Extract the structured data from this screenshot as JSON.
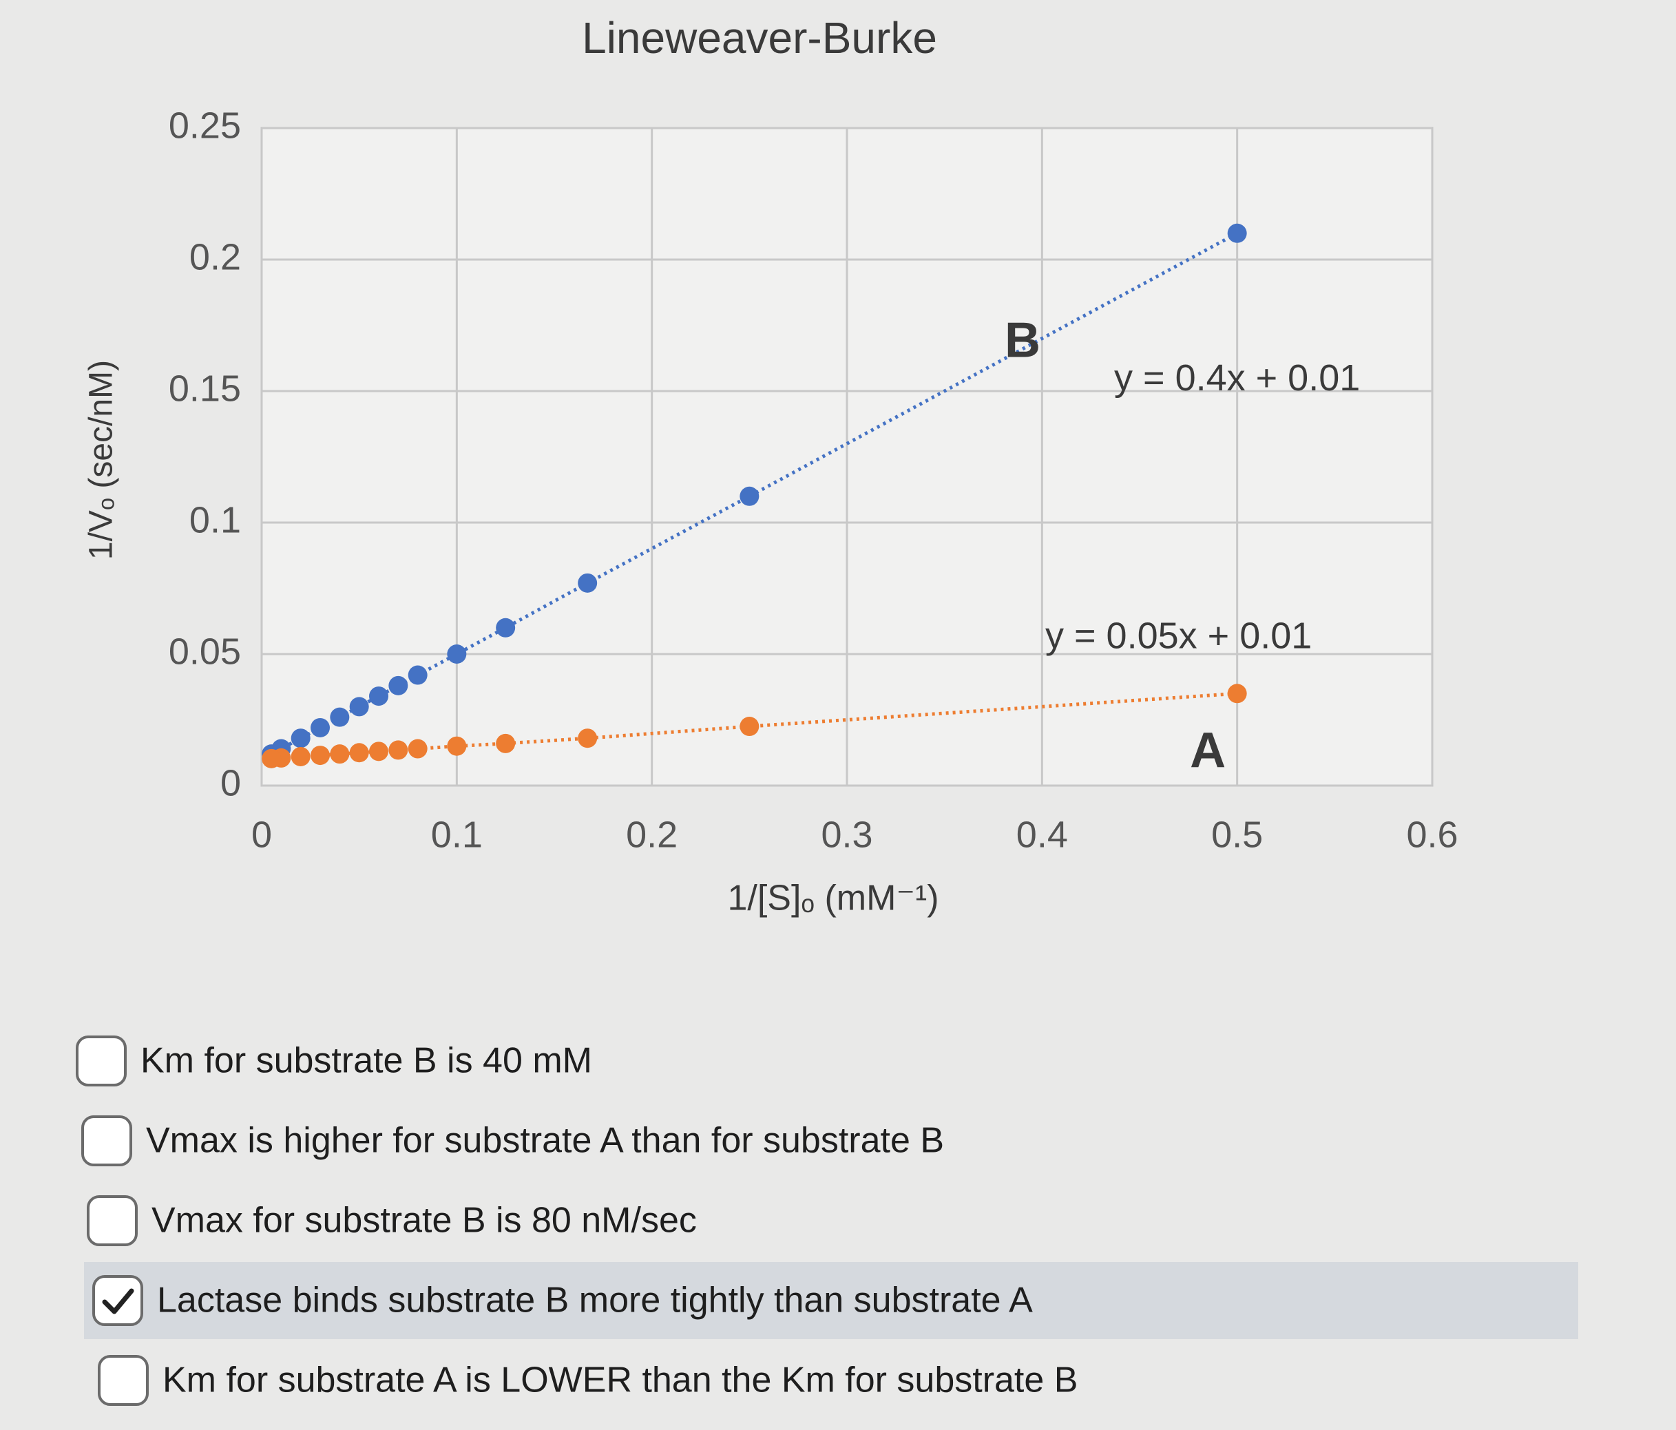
{
  "chart_data": {
    "type": "scatter",
    "title": "Lineweaver-Burke",
    "x_label": "1/[S]ₒ (mM⁻¹)",
    "y_label": "1/Vₒ (sec/nM)",
    "x": [
      0.5,
      0.25,
      0.167,
      0.125,
      0.1,
      0.08,
      0.07,
      0.06,
      0.05,
      0.04,
      0.03,
      0.02,
      0.01,
      0.005
    ],
    "series": [
      {
        "name": "B",
        "color": "#4472c4",
        "values": [
          0.21,
          0.11,
          0.077,
          0.06,
          0.05,
          0.042,
          0.038,
          0.034,
          0.03,
          0.026,
          0.022,
          0.018,
          0.014,
          0.012
        ]
      },
      {
        "name": "A",
        "color": "#ed7d31",
        "values": [
          0.035,
          0.0225,
          0.018,
          0.016,
          0.015,
          0.014,
          0.0135,
          0.013,
          0.0125,
          0.012,
          0.0115,
          0.011,
          0.0105,
          0.01025
        ]
      }
    ],
    "annotations": [
      "y = 0.4x + 0.01",
      "y = 0.05x + 0.01"
    ],
    "xlim": [
      0,
      0.6
    ],
    "xticks": [
      0,
      0.1,
      0.2,
      0.3,
      0.4,
      0.5,
      0.6
    ],
    "ylim": [
      0,
      0.25
    ],
    "yticks": [
      0,
      0.05,
      0.1,
      0.15,
      0.2,
      0.25
    ],
    "grid": true
  },
  "options": [
    {
      "text": "Km for substrate B is 40 mM",
      "checked": false
    },
    {
      "text": "Vmax is higher for substrate A than for substrate B",
      "checked": false
    },
    {
      "text": "Vmax for substrate B is 80 nM/sec",
      "checked": false
    },
    {
      "text": "Lactase binds substrate B more tightly than substrate A",
      "checked": true
    },
    {
      "text": "Km for substrate A is LOWER than the Km for substrate B",
      "checked": false
    }
  ]
}
